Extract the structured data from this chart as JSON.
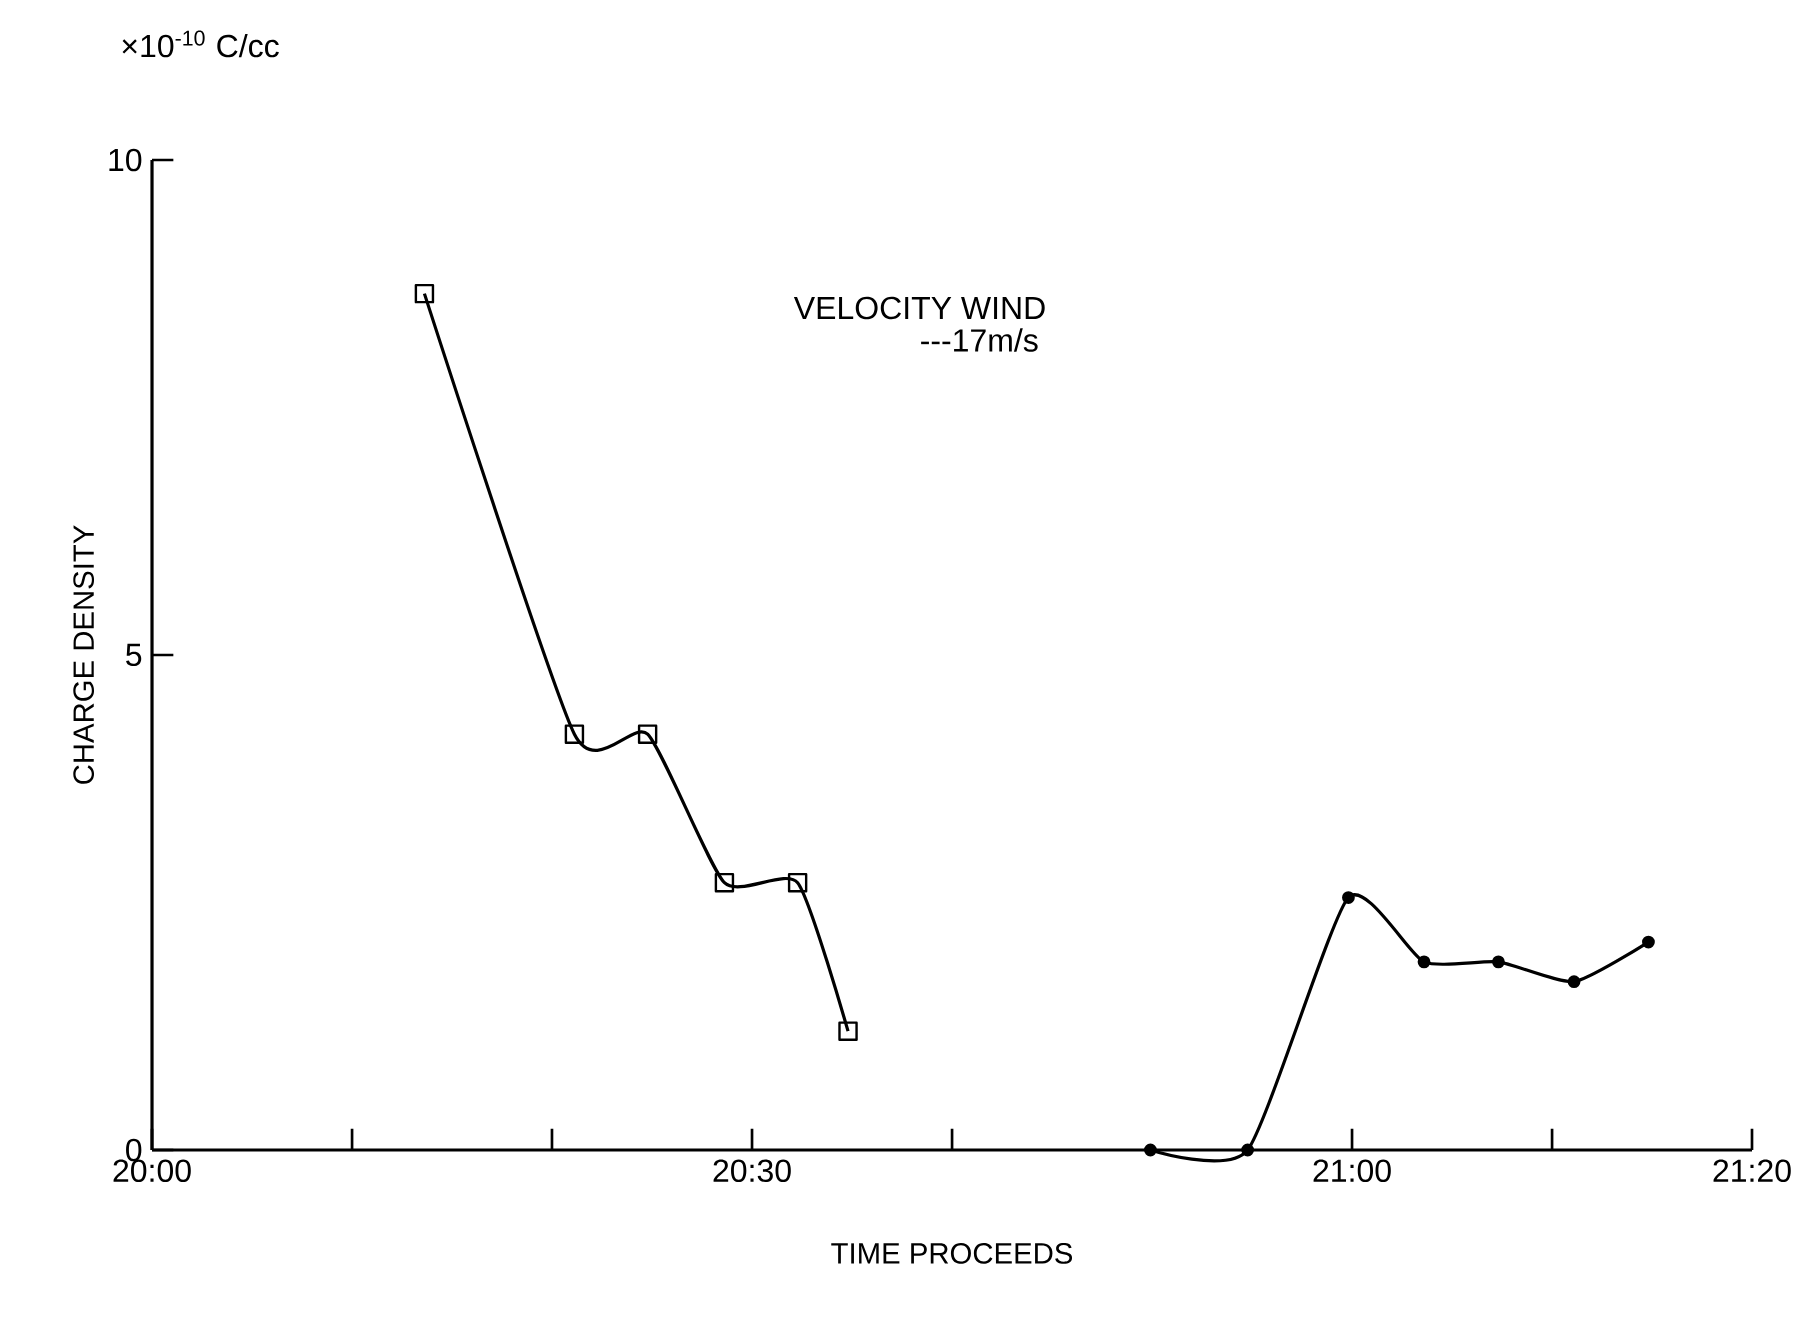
{
  "chart_data": {
    "type": "line",
    "xlabel": "TIME PROCEEDS",
    "ylabel": "CHARGE DENSITY",
    "annotations": [
      "×10$^{-10}$  C/cc",
      "VELOCITY WIND",
      "---17m/s"
    ],
    "xlim": [
      20,
      21.3333
    ],
    "ylim": [
      0,
      10
    ],
    "yticks": [
      0,
      5,
      10
    ],
    "xticks": [
      {
        "value": 20,
        "label": "20:00"
      },
      {
        "value": 20.1667,
        "label": null
      },
      {
        "value": 20.3333,
        "label": null
      },
      {
        "value": 20.5,
        "label": "20:30"
      },
      {
        "value": 20.6667,
        "label": null
      },
      {
        "value": 21,
        "label": "21:00"
      },
      {
        "value": 21.1667,
        "label": null
      },
      {
        "value": 21.3333,
        "label": "21:20"
      }
    ],
    "series": [
      {
        "color": "#000000",
        "marker": "square",
        "x": [
          20.227,
          20.352,
          20.413,
          20.477,
          20.538,
          20.58
        ],
        "values": [
          8.65,
          4.2,
          4.2,
          2.7,
          2.7,
          1.2
        ]
      },
      {
        "color": "#000000",
        "marker": "circle",
        "x": [
          20.832,
          20.913,
          20.997,
          21.06,
          21.122,
          21.185,
          21.247
        ],
        "values": [
          0,
          0,
          2.55,
          1.9,
          1.9,
          1.7,
          2.1
        ]
      }
    ]
  }
}
